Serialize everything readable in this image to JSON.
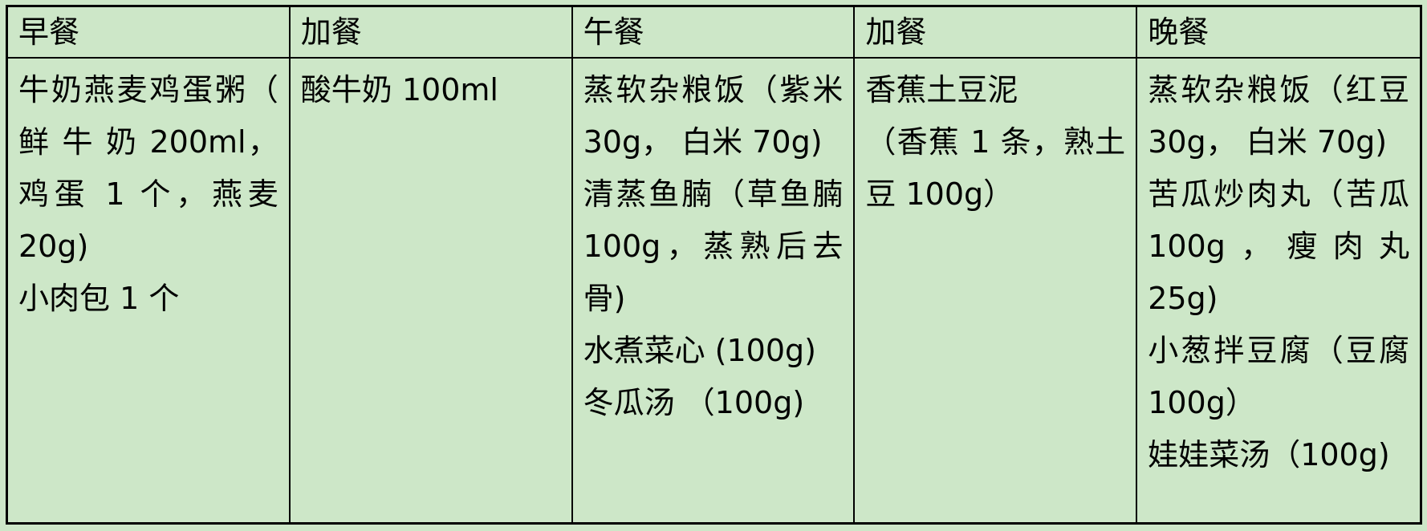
{
  "page": {
    "background_color": "#cde7c8",
    "border_color": "#000000",
    "text_color": "#000000"
  },
  "table": {
    "columns": [
      {
        "header": "早餐",
        "items": [
          "牛奶燕麦鸡蛋粥（ 鲜 牛 奶 200ml， 鸡蛋 1 个，燕麦 20g)",
          "小肉包 1 个"
        ]
      },
      {
        "header": "加餐",
        "items": [
          "酸牛奶 100ml"
        ]
      },
      {
        "header": "午餐",
        "items": [
          "蒸软杂粮饭（紫米 30g， 白米 70g)",
          "清蒸鱼腩（草鱼腩 100g，蒸熟后去骨)",
          "水煮菜心 (100g)",
          "冬瓜汤 （100g)"
        ]
      },
      {
        "header": "加餐",
        "items": [
          "香蕉土豆泥",
          "（香蕉 1 条，熟土豆 100g）"
        ]
      },
      {
        "header": "晚餐",
        "items": [
          "蒸软杂粮饭（红豆 30g， 白米 70g)",
          "苦瓜炒肉丸（苦瓜 100g，瘦肉丸 25g)",
          "小葱拌豆腐（豆腐 100g）",
          "娃娃菜汤（100g)"
        ]
      }
    ]
  }
}
